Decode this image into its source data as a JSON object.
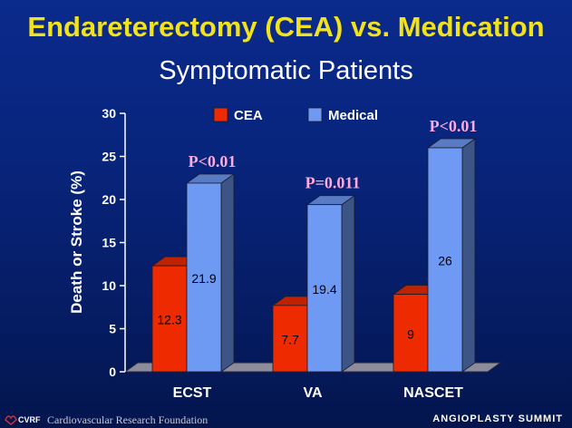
{
  "title": "Endareterectomy (CEA) vs. Medication",
  "subtitle": "Symptomatic Patients",
  "footer": {
    "logo_text": "CVRF",
    "organization": "Cardiovascular Research Foundation",
    "brand": "ANGIOPLASTY SUMMIT"
  },
  "colors": {
    "cea": "#ee2a00",
    "medical": "#6f9af4",
    "title": "#f2e21a",
    "pvalue": "#ffaadd"
  },
  "chart_data": {
    "type": "bar",
    "categories": [
      "ECST",
      "VA",
      "NASCET"
    ],
    "series": [
      {
        "name": "CEA",
        "values": [
          12.3,
          7.7,
          9
        ]
      },
      {
        "name": "Medical",
        "values": [
          21.9,
          19.4,
          26
        ]
      }
    ],
    "value_labels": [
      [
        "12.3",
        "7.7",
        "9"
      ],
      [
        "21.9",
        "19.4",
        "26"
      ]
    ],
    "pvalues": [
      "P<0.01",
      "P=0.011",
      "P<0.01"
    ],
    "ylabel": "Death or Stroke (%)",
    "xlabel": "",
    "ylim": [
      0,
      30
    ],
    "yticks": [
      0,
      5,
      10,
      15,
      20,
      25,
      30
    ],
    "legend_position": "top-center",
    "grid": false,
    "three_d": true
  }
}
